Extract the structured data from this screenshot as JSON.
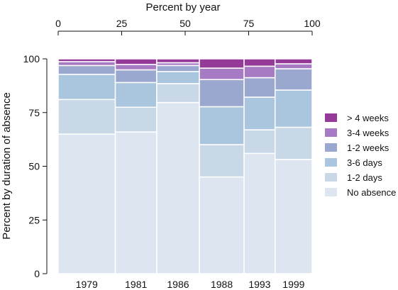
{
  "chart_data": {
    "type": "bar",
    "stacked": true,
    "variable_width": true,
    "title": "",
    "top_axis_label": "Percent by year",
    "top_axis_ticks": [
      "0",
      "25",
      "50",
      "75",
      "100"
    ],
    "top_axis_range": [
      0,
      100
    ],
    "ylabel": "Percent by duration of absence",
    "ylim": [
      0,
      100
    ],
    "y_ticks": [
      "0",
      "25",
      "50",
      "75",
      "100"
    ],
    "categories": [
      "1979",
      "1981",
      "1986",
      "1988",
      "1993",
      "1999"
    ],
    "category_widths_percent": [
      22.5,
      16.3,
      16.8,
      17.6,
      12.2,
      14.6
    ],
    "series": [
      {
        "name": "No absence",
        "color": "#dde6f0",
        "values": [
          64.9,
          65.9,
          79.6,
          44.9,
          55.6,
          53.1
        ]
      },
      {
        "name": "1-2 days",
        "color": "#c8d8e7",
        "values": [
          16.1,
          11.5,
          8.8,
          15.0,
          10.9,
          15.0
        ]
      },
      {
        "name": "3-6 days",
        "color": "#aac6de",
        "values": [
          11.7,
          11.5,
          5.6,
          17.6,
          15.1,
          17.3
        ]
      },
      {
        "name": "1-2 weeks",
        "color": "#9aa7cf",
        "values": [
          4.1,
          5.9,
          2.8,
          12.6,
          9.0,
          9.9
        ]
      },
      {
        "name": "3-4 weeks",
        "color": "#a77bc3",
        "values": [
          1.8,
          2.5,
          1.3,
          5.3,
          5.3,
          2.3
        ]
      },
      {
        "name": "> 4 weeks",
        "color": "#963a9a",
        "values": [
          1.3,
          2.6,
          1.8,
          4.3,
          3.4,
          2.3
        ]
      }
    ],
    "legend_position": "right",
    "grid": false
  }
}
